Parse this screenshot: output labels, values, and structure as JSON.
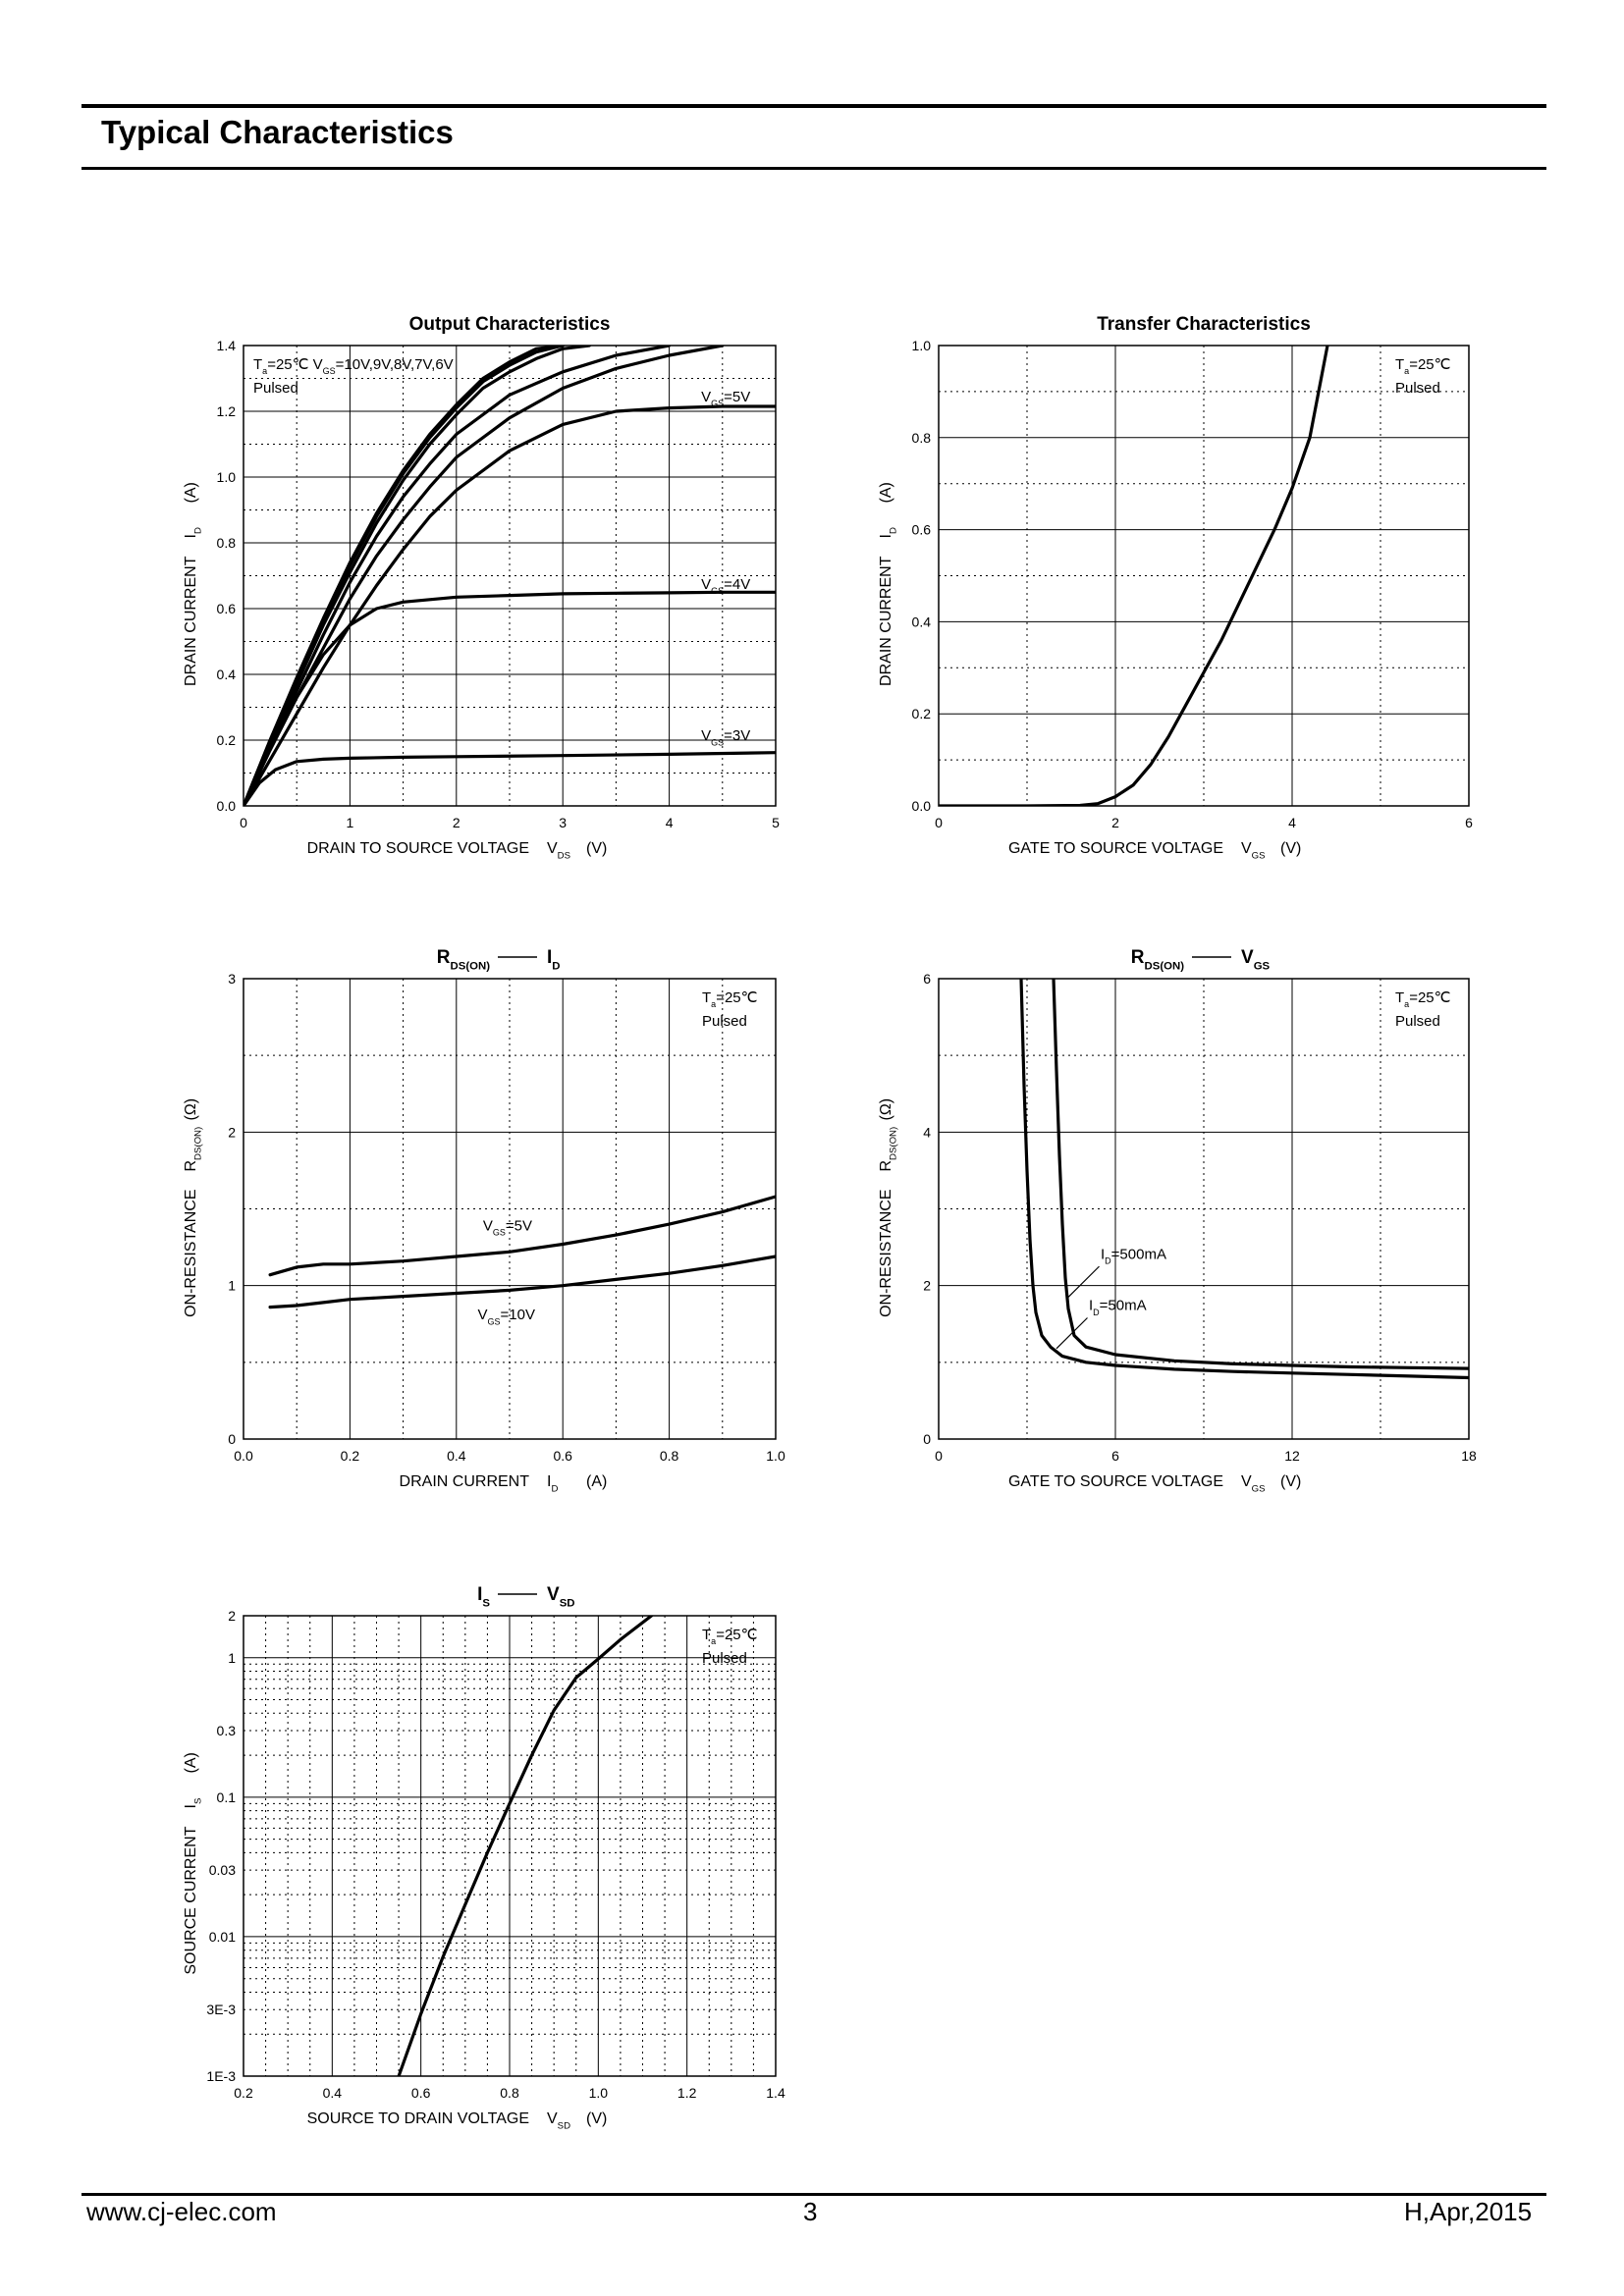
{
  "header": {
    "title": "Typical Characteristics"
  },
  "footer": {
    "website": "www.cj-elec.com",
    "page": "3",
    "revision": "H,Apr,2015"
  },
  "chart_data": [
    {
      "id": "output",
      "type": "line",
      "title": "Output Characteristics",
      "xlabel": "DRAIN TO SOURCE VOLTAGE",
      "xsym": "V",
      "xsub": "DS",
      "xunit": "(V)",
      "ylabel": "DRAIN CURRENT",
      "ysym": "I",
      "ysub": "D",
      "yunit": "(A)",
      "xlim": [
        0,
        5
      ],
      "ylim": [
        0,
        1.4
      ],
      "xticks": [
        0,
        1,
        2,
        3,
        4,
        5
      ],
      "xtick_labels": [
        "0",
        "1",
        "2",
        "3",
        "4",
        "5"
      ],
      "yticks": [
        0,
        0.2,
        0.4,
        0.6,
        0.8,
        1.0,
        1.2,
        1.4
      ],
      "ytick_labels": [
        "0.0",
        "0.2",
        "0.4",
        "0.6",
        "0.8",
        "1.0",
        "1.2",
        "1.4"
      ],
      "conditions": [
        "Ta=25℃ VGS=10V,9V,8V,7V,6V",
        "Pulsed"
      ],
      "grid": true,
      "series": [
        {
          "name": "VGS=10V",
          "x": [
            0,
            0.25,
            0.5,
            0.75,
            1,
            1.25,
            1.5,
            1.75,
            2,
            2.25,
            2.5,
            2.75,
            3
          ],
          "y": [
            0,
            0.2,
            0.39,
            0.57,
            0.74,
            0.89,
            1.02,
            1.13,
            1.22,
            1.3,
            1.35,
            1.39,
            1.4
          ]
        },
        {
          "name": "VGS=9V",
          "x": [
            0,
            0.25,
            0.5,
            0.75,
            1,
            1.25,
            1.5,
            1.75,
            2,
            2.25,
            2.5,
            2.75,
            3
          ],
          "y": [
            0,
            0.2,
            0.38,
            0.56,
            0.73,
            0.88,
            1.01,
            1.12,
            1.21,
            1.29,
            1.34,
            1.38,
            1.4
          ]
        },
        {
          "name": "VGS=8V",
          "x": [
            0,
            0.25,
            0.5,
            0.75,
            1,
            1.25,
            1.5,
            1.75,
            2,
            2.25,
            2.5,
            2.75,
            3,
            3.25
          ],
          "y": [
            0,
            0.19,
            0.37,
            0.55,
            0.71,
            0.86,
            0.99,
            1.1,
            1.19,
            1.27,
            1.32,
            1.36,
            1.39,
            1.4
          ]
        },
        {
          "name": "VGS=7V",
          "x": [
            0,
            0.25,
            0.5,
            0.75,
            1,
            1.25,
            1.5,
            1.75,
            2,
            2.5,
            3,
            3.5,
            4
          ],
          "y": [
            0,
            0.18,
            0.35,
            0.52,
            0.68,
            0.82,
            0.94,
            1.04,
            1.13,
            1.25,
            1.32,
            1.37,
            1.4
          ]
        },
        {
          "name": "VGS=6V",
          "x": [
            0,
            0.25,
            0.5,
            0.75,
            1,
            1.25,
            1.5,
            1.75,
            2,
            2.5,
            3,
            3.5,
            4,
            4.5
          ],
          "y": [
            0,
            0.17,
            0.33,
            0.48,
            0.63,
            0.76,
            0.87,
            0.97,
            1.06,
            1.18,
            1.27,
            1.33,
            1.37,
            1.4
          ]
        },
        {
          "name": "VGS=5V",
          "x": [
            0,
            0.25,
            0.5,
            0.75,
            1,
            1.25,
            1.5,
            1.75,
            2,
            2.5,
            3,
            3.5,
            4,
            4.5,
            5
          ],
          "y": [
            0,
            0.14,
            0.28,
            0.42,
            0.55,
            0.67,
            0.78,
            0.88,
            0.96,
            1.08,
            1.16,
            1.2,
            1.21,
            1.215,
            1.215
          ]
        },
        {
          "name": "VGS=4V",
          "x": [
            0,
            0.25,
            0.5,
            0.75,
            1,
            1.25,
            1.5,
            2,
            2.5,
            3,
            3.5,
            4,
            4.5,
            5
          ],
          "y": [
            0,
            0.17,
            0.33,
            0.46,
            0.55,
            0.6,
            0.62,
            0.635,
            0.64,
            0.645,
            0.647,
            0.648,
            0.65,
            0.65
          ]
        },
        {
          "name": "VGS=3V",
          "x": [
            0,
            0.15,
            0.3,
            0.5,
            0.75,
            1,
            1.5,
            2,
            3,
            4,
            5
          ],
          "y": [
            0,
            0.07,
            0.11,
            0.135,
            0.142,
            0.145,
            0.148,
            0.15,
            0.153,
            0.157,
            0.162
          ]
        }
      ],
      "annotations": [
        {
          "sym": "V",
          "sub": "GS",
          "rest": "=5V",
          "x": 4.3,
          "y": 1.23
        },
        {
          "sym": "V",
          "sub": "GS",
          "rest": "=4V",
          "x": 4.3,
          "y": 0.66
        },
        {
          "sym": "V",
          "sub": "GS",
          "rest": "=3V",
          "x": 4.3,
          "y": 0.2
        }
      ]
    },
    {
      "id": "transfer",
      "type": "line",
      "title": "Transfer Characteristics",
      "xlabel": "GATE TO SOURCE VOLTAGE",
      "xsym": "V",
      "xsub": "GS",
      "xunit": "(V)",
      "ylabel": "DRAIN CURRENT",
      "ysym": "I",
      "ysub": "D",
      "yunit": "(A)",
      "xlim": [
        0,
        6
      ],
      "ylim": [
        0,
        1.0
      ],
      "xticks": [
        0,
        2,
        4,
        6
      ],
      "xtick_labels": [
        "0",
        "2",
        "4",
        "6"
      ],
      "yticks": [
        0,
        0.2,
        0.4,
        0.6,
        0.8,
        1.0
      ],
      "ytick_labels": [
        "0.0",
        "0.2",
        "0.4",
        "0.6",
        "0.8",
        "1.0"
      ],
      "conditions": [
        "Ta=25℃",
        "Pulsed"
      ],
      "grid": true,
      "series": [
        {
          "name": "",
          "x": [
            0,
            1,
            1.6,
            1.8,
            2.0,
            2.2,
            2.4,
            2.6,
            2.8,
            3.0,
            3.2,
            3.4,
            3.6,
            3.8,
            4.0,
            4.2,
            4.4
          ],
          "y": [
            0,
            0,
            0.001,
            0.005,
            0.02,
            0.045,
            0.09,
            0.15,
            0.22,
            0.29,
            0.36,
            0.44,
            0.52,
            0.6,
            0.69,
            0.8,
            1.0
          ]
        }
      ],
      "annotations": []
    },
    {
      "id": "rds_id",
      "type": "line",
      "title": "RDS(ON) — ID",
      "xlabel": "DRAIN CURRENT",
      "xsym": "I",
      "xsub": "D",
      "xunit": "(A)",
      "ylabel": "ON-RESISTANCE",
      "ysym": "R",
      "ysub": "DS(ON)",
      "yunit": "(Ω)",
      "xlim": [
        0,
        1.0
      ],
      "ylim": [
        0,
        3
      ],
      "xticks": [
        0,
        0.2,
        0.4,
        0.6,
        0.8,
        1.0
      ],
      "xtick_labels": [
        "0.0",
        "0.2",
        "0.4",
        "0.6",
        "0.8",
        "1.0"
      ],
      "yticks": [
        0,
        1,
        2,
        3
      ],
      "ytick_labels": [
        "0",
        "1",
        "2",
        "3"
      ],
      "conditions": [
        "Ta=25℃",
        "Pulsed"
      ],
      "grid": true,
      "series": [
        {
          "name": "VGS=5V",
          "x": [
            0.05,
            0.1,
            0.15,
            0.2,
            0.3,
            0.4,
            0.5,
            0.6,
            0.7,
            0.8,
            0.9,
            1.0
          ],
          "y": [
            1.07,
            1.12,
            1.14,
            1.14,
            1.16,
            1.19,
            1.22,
            1.27,
            1.33,
            1.4,
            1.48,
            1.58
          ]
        },
        {
          "name": "VGS=10V",
          "x": [
            0.05,
            0.1,
            0.15,
            0.2,
            0.3,
            0.4,
            0.5,
            0.6,
            0.7,
            0.8,
            0.9,
            1.0
          ],
          "y": [
            0.86,
            0.87,
            0.89,
            0.91,
            0.93,
            0.95,
            0.97,
            1.0,
            1.04,
            1.08,
            1.13,
            1.19
          ]
        }
      ],
      "annotations": [
        {
          "sym": "V",
          "sub": "GS",
          "rest": "=5V",
          "x": 0.45,
          "y": 1.36
        },
        {
          "sym": "V",
          "sub": "GS",
          "rest": "=10V",
          "x": 0.44,
          "y": 0.78
        }
      ]
    },
    {
      "id": "rds_vgs",
      "type": "line",
      "title": "RDS(ON) — VGS",
      "xlabel": "GATE TO SOURCE VOLTAGE",
      "xsym": "V",
      "xsub": "GS",
      "xunit": "(V)",
      "ylabel": "ON-RESISTANCE",
      "ysym": "R",
      "ysub": "DS(ON)",
      "yunit": "(Ω)",
      "xlim": [
        0,
        18
      ],
      "ylim": [
        0,
        6
      ],
      "xticks": [
        0,
        6,
        12,
        18
      ],
      "xtick_labels": [
        "0",
        "6",
        "12",
        "18"
      ],
      "yticks": [
        0,
        2,
        4,
        6
      ],
      "ytick_labels": [
        "0",
        "2",
        "4",
        "6"
      ],
      "conditions": [
        "Ta=25℃",
        "Pulsed"
      ],
      "grid": true,
      "series": [
        {
          "name": "ID=500mA",
          "x": [
            3.9,
            4.0,
            4.1,
            4.2,
            4.3,
            4.4,
            4.6,
            5.0,
            6.0,
            8.0,
            10,
            12,
            14,
            16,
            18
          ],
          "y": [
            6.0,
            4.8,
            3.7,
            2.8,
            2.1,
            1.7,
            1.35,
            1.2,
            1.1,
            1.02,
            0.98,
            0.96,
            0.94,
            0.93,
            0.92
          ]
        },
        {
          "name": "ID=50mA",
          "x": [
            2.8,
            2.9,
            3.0,
            3.1,
            3.2,
            3.3,
            3.5,
            3.8,
            4.2,
            5.0,
            6.0,
            8.0,
            10,
            12,
            14,
            16,
            18
          ],
          "y": [
            6.0,
            4.6,
            3.5,
            2.6,
            2.0,
            1.65,
            1.35,
            1.2,
            1.08,
            1.0,
            0.96,
            0.91,
            0.88,
            0.86,
            0.84,
            0.82,
            0.8
          ]
        }
      ],
      "annotations": [
        {
          "sym": "I",
          "sub": "D",
          "rest": "=500mA",
          "x": 5.5,
          "y": 2.35
        },
        {
          "sym": "I",
          "sub": "D",
          "rest": "=50mA",
          "x": 5.1,
          "y": 1.68
        }
      ]
    },
    {
      "id": "is_vsd",
      "type": "line",
      "title": "IS — VSD",
      "xlabel": "SOURCE TO DRAIN VOLTAGE",
      "xsym": "V",
      "xsub": "SD",
      "xunit": "(V)",
      "ylabel": "SOURCE CURRENT",
      "ysym": "I",
      "ysub": "S",
      "yunit": "(A)",
      "xlim": [
        0.2,
        1.4
      ],
      "ylim": [
        0.001,
        2
      ],
      "yscale": "log",
      "xticks": [
        0.2,
        0.4,
        0.6,
        0.8,
        1.0,
        1.2,
        1.4
      ],
      "xtick_labels": [
        "0.2",
        "0.4",
        "0.6",
        "0.8",
        "1.0",
        "1.2",
        "1.4"
      ],
      "yticks": [
        0.001,
        0.003,
        0.01,
        0.03,
        0.1,
        0.3,
        1,
        2
      ],
      "ytick_labels": [
        "1E-3",
        "3E-3",
        "0.01",
        "0.03",
        "0.1",
        "0.3",
        "1",
        "2"
      ],
      "conditions": [
        "Ta=25℃",
        "Pulsed"
      ],
      "grid": true,
      "series": [
        {
          "name": "",
          "x": [
            0.55,
            0.6,
            0.65,
            0.7,
            0.75,
            0.8,
            0.85,
            0.9,
            0.95,
            1.0,
            1.05,
            1.12
          ],
          "y": [
            0.001,
            0.0028,
            0.0072,
            0.017,
            0.04,
            0.09,
            0.2,
            0.42,
            0.72,
            0.98,
            1.35,
            2.0
          ]
        }
      ],
      "annotations": []
    }
  ]
}
